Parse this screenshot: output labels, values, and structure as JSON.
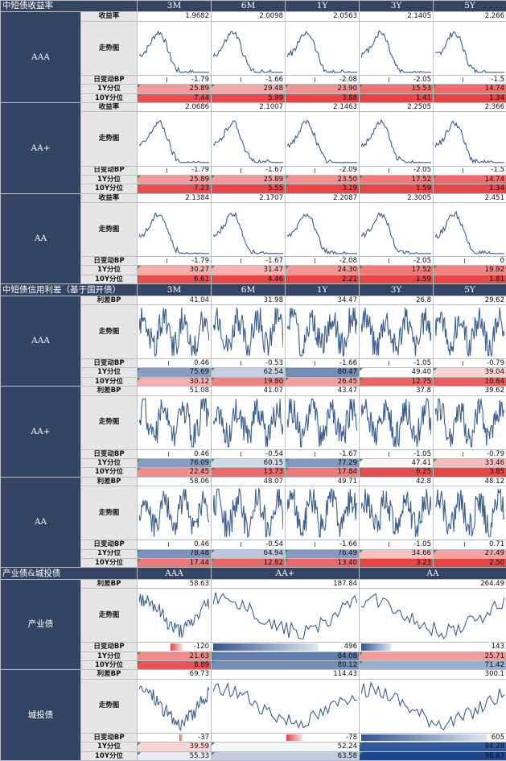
{
  "tenors5": [
    "3M",
    "6M",
    "1Y",
    "3Y",
    "5Y"
  ],
  "tenors3": [
    "AAA",
    "AA+",
    "AA"
  ],
  "yield": {
    "title": "中短债收益率",
    "groups": [
      {
        "name": "AAA",
        "rate": [
          "1.9682",
          "2.0098",
          "2.0563",
          "2.1405",
          "2.266"
        ],
        "chg": [
          "-1.79",
          "-1.66",
          "-2.08",
          "-2.05",
          "-1.5"
        ],
        "p1y": [
          "25.89",
          "29.48",
          "23.90",
          "15.53",
          "14.74"
        ],
        "p10y": [
          "7.44",
          "5.99",
          "3.88",
          "1.41",
          "1.34"
        ]
      },
      {
        "name": "AA+",
        "rate": [
          "2.0686",
          "2.1007",
          "2.1463",
          "2.2505",
          "2.366"
        ],
        "chg": [
          "-1.79",
          "-1.67",
          "-2.09",
          "-2.05",
          "-1.5"
        ],
        "p1y": [
          "25.89",
          "25.89",
          "23.50",
          "17.52",
          "14.74"
        ],
        "p10y": [
          "7.23",
          "5.55",
          "3.19",
          "1.59",
          "1.34"
        ]
      },
      {
        "name": "AA",
        "rate": [
          "2.1384",
          "2.1707",
          "2.2087",
          "2.3005",
          "2.451"
        ],
        "chg": [
          "-1.79",
          "-1.67",
          "-2.08",
          "-2.05",
          "0"
        ],
        "p1y": [
          "30.27",
          "31.47",
          "24.30",
          "17.52",
          "19.92"
        ],
        "p10y": [
          "6.61",
          "4.46",
          "2.21",
          "1.59",
          "1.81"
        ]
      }
    ]
  },
  "spread": {
    "title": "中短债信用利差（基于国开债）",
    "groups": [
      {
        "name": "AAA",
        "rate": [
          "41.04",
          "31.98",
          "34.47",
          "26.8",
          "29.62"
        ],
        "chg": [
          "0.46",
          "-0.53",
          "-1.66",
          "-1.05",
          "-0.79"
        ],
        "p1y": [
          "75.69",
          "62.54",
          "80.47",
          "49.40",
          "39.04"
        ],
        "p10y": [
          "30.12",
          "19.80",
          "26.45",
          "12.75",
          "10.64"
        ]
      },
      {
        "name": "AA+",
        "rate": [
          "51.08",
          "41.07",
          "43.47",
          "37.8",
          "39.62"
        ],
        "chg": [
          "0.46",
          "-0.54",
          "-1.67",
          "-1.05",
          "-0.79"
        ],
        "p1y": [
          "76.09",
          "60.15",
          "77.29",
          "47.41",
          "33.46"
        ],
        "p10y": [
          "22.45",
          "13.73",
          "17.84",
          "6.25",
          "3.85"
        ]
      },
      {
        "name": "AA",
        "rate": [
          "58.06",
          "48.07",
          "49.71",
          "42.8",
          "48.12"
        ],
        "chg": [
          "0.46",
          "-0.54",
          "-1.66",
          "-1.05",
          "0.71"
        ],
        "p1y": [
          "78.48",
          "64.94",
          "76.49",
          "34.66",
          "27.49"
        ],
        "p10y": [
          "17.44",
          "12.82",
          "13.40",
          "3.23",
          "2.50"
        ]
      }
    ]
  },
  "sector": {
    "title": "产业债&城投债",
    "groups": [
      {
        "name": "产业债",
        "rate": [
          "58.63",
          "187.84",
          "264.49"
        ],
        "chg": [
          "-120",
          "496",
          "143"
        ],
        "p1y": [
          "21.63",
          "84.08",
          "25.71"
        ],
        "p10y": [
          "8.89",
          "80.12",
          "71.42"
        ]
      },
      {
        "name": "城投债",
        "rate": [
          "69.73",
          "114.43",
          "300.1"
        ],
        "chg": [
          "-37",
          "-78",
          "605"
        ],
        "p1y": [
          "39.59",
          "52.24",
          "94.28"
        ],
        "p10y": [
          "55.33",
          "63.58",
          "98.87"
        ]
      }
    ]
  },
  "labels": {
    "yield_row": "收益率",
    "spread_row": "利差BP",
    "trend": "走势图",
    "chg": "日变动BP",
    "p1y": "1Y分位",
    "p10y": "10Y分位"
  },
  "colors": {
    "header": "#344563",
    "label_bg": "#e7e6e6",
    "line": "#3a5f93",
    "high": "#2f5597",
    "low": "#e84545"
  }
}
